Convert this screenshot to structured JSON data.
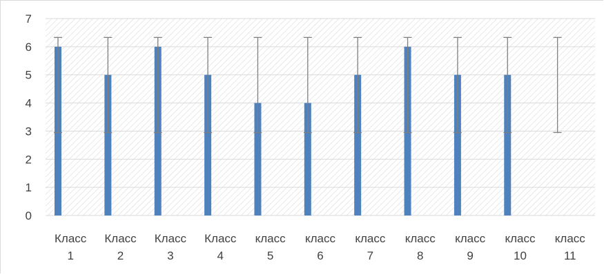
{
  "chart_data": {
    "type": "bar",
    "title": "",
    "xlabel": "",
    "ylabel": "",
    "ylim": [
      0,
      7
    ],
    "yticks": [
      0,
      1,
      2,
      3,
      4,
      5,
      6,
      7
    ],
    "grid": true,
    "categories": [
      [
        "Класс",
        "1"
      ],
      [
        "Класс",
        "2"
      ],
      [
        "Класс",
        "3"
      ],
      [
        "Класс",
        "4"
      ],
      [
        "класс",
        "5"
      ],
      [
        "класс",
        "6"
      ],
      [
        "класс",
        "7"
      ],
      [
        "класс",
        "8"
      ],
      [
        "класс",
        "9"
      ],
      [
        "класс",
        "10"
      ],
      [
        "класс",
        "11"
      ]
    ],
    "values": [
      6,
      5,
      6,
      5,
      4,
      4,
      5,
      6,
      5,
      5,
      null
    ],
    "error_bars": {
      "low": 2.95,
      "high": 6.33
    },
    "colors": {
      "bar": "#4f81bd",
      "error_bar": "#7f7f7f",
      "grid": "#d9d9d9",
      "plot_pattern": "#d9d9d9"
    }
  }
}
